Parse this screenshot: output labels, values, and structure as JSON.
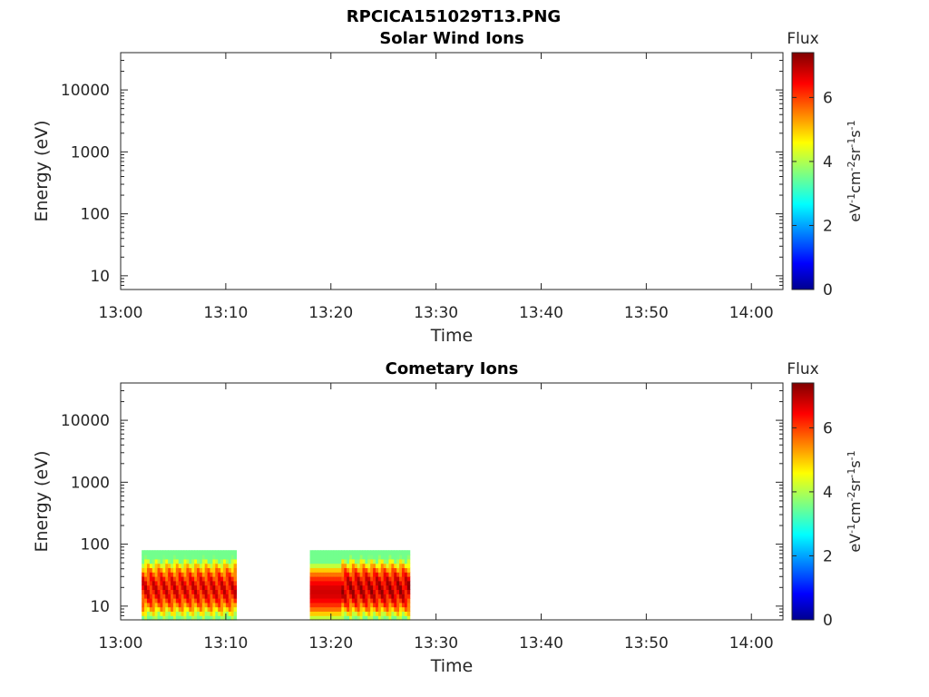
{
  "figure": {
    "title": "RPCICA151029T13.PNG"
  },
  "chart_data": [
    {
      "type": "heatmap",
      "title": "Solar Wind Ions",
      "xlabel": "Time",
      "ylabel": "Energy (eV)",
      "xlim": [
        "13:00",
        "14:03"
      ],
      "ylim": [
        6,
        40000
      ],
      "yscale": "log",
      "xticks": [
        "13:00",
        "13:10",
        "13:20",
        "13:30",
        "13:40",
        "13:50",
        "14:00"
      ],
      "yticks": [
        10,
        100,
        1000,
        10000
      ],
      "ytick_labels": [
        "10",
        "100",
        "1000",
        "10000"
      ],
      "colorbar": {
        "label": "Flux",
        "unit_label": "eV-1cm-2sr-1s-1",
        "range": [
          0,
          7.4
        ],
        "ticks": [
          0,
          2,
          4,
          6
        ],
        "tick_labels": [
          "0",
          "2",
          "4",
          "6"
        ],
        "colormap": "jet"
      },
      "blocks": []
    },
    {
      "type": "heatmap",
      "title": "Cometary Ions",
      "xlabel": "Time",
      "ylabel": "Energy (eV)",
      "xlim": [
        "13:00",
        "14:03"
      ],
      "ylim": [
        6,
        40000
      ],
      "yscale": "log",
      "xticks": [
        "13:00",
        "13:10",
        "13:20",
        "13:30",
        "13:40",
        "13:50",
        "14:00"
      ],
      "yticks": [
        10,
        100,
        1000,
        10000
      ],
      "ytick_labels": [
        "10",
        "100",
        "1000",
        "10000"
      ],
      "colorbar": {
        "label": "Flux",
        "unit_label": "eV-1cm-2sr-1s-1",
        "range": [
          0,
          7.4
        ],
        "ticks": [
          0,
          2,
          4,
          6
        ],
        "tick_labels": [
          "0",
          "2",
          "4",
          "6"
        ],
        "colormap": "jet"
      },
      "blocks": [
        {
          "t_start": "13:02",
          "t_end": "13:11",
          "e_min": 6,
          "e_max": 80,
          "peak_flux": 6.5
        },
        {
          "t_start": "13:18",
          "t_end": "13:27.5",
          "e_min": 6,
          "e_max": 80,
          "peak_flux": 6.8
        }
      ]
    }
  ]
}
